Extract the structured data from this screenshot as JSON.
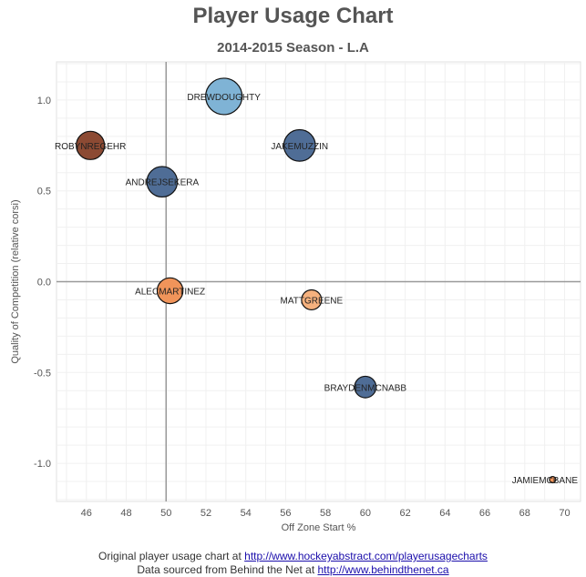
{
  "chart_data": {
    "type": "scatter",
    "title": "Player Usage Chart",
    "subtitle": "2014-2015 Season - L.A",
    "xlabel": "Off Zone Start %",
    "ylabel": "Quality of Competition (relative corsi)",
    "xlim": [
      44.5,
      70.8
    ],
    "ylim": [
      -1.21,
      1.21
    ],
    "xticks": [
      46,
      48,
      50,
      52,
      54,
      56,
      58,
      60,
      62,
      64,
      66,
      68,
      70
    ],
    "yticks": [
      -1.0,
      -0.5,
      0.0,
      0.5,
      1.0
    ],
    "ytick_labels": [
      "-1.0",
      "-0.5",
      "0.0",
      "0.5",
      "1.0"
    ],
    "ref_x": 50,
    "ref_y": 0,
    "grid": true,
    "points": [
      {
        "label": "DREWDOUGHTY",
        "x": 52.9,
        "y": 1.02,
        "size": 1.0,
        "color": "#7fb3d5"
      },
      {
        "label": "ROBYNREGEHR",
        "x": 46.2,
        "y": 0.75,
        "size": 0.6,
        "color": "#8c4a33"
      },
      {
        "label": "JAKEMUZZIN",
        "x": 56.7,
        "y": 0.75,
        "size": 0.75,
        "color": "#4f6d96"
      },
      {
        "label": "ANDREJSEKERA",
        "x": 49.8,
        "y": 0.55,
        "size": 0.7,
        "color": "#4f6d96"
      },
      {
        "label": "ALECMARTINEZ",
        "x": 50.2,
        "y": -0.05,
        "size": 0.5,
        "color": "#f0945a"
      },
      {
        "label": "MATTGREENE",
        "x": 57.3,
        "y": -0.1,
        "size": 0.3,
        "color": "#f5b17e"
      },
      {
        "label": "BRAYDENMCNABB",
        "x": 60.0,
        "y": -0.58,
        "size": 0.35,
        "color": "#4f6d96"
      },
      {
        "label": "JAMIEMCBANE",
        "x": 69.4,
        "y": -1.09,
        "size": 0.03,
        "color": "#f0945a"
      }
    ]
  },
  "footer": {
    "line1_text": "Original player usage chart at ",
    "line1_link": "http://www.hockeyabstract.com/playerusagecharts",
    "line2_text": "Data sourced from Behind the Net at ",
    "line2_link": "http://www.behindthenet.ca"
  }
}
